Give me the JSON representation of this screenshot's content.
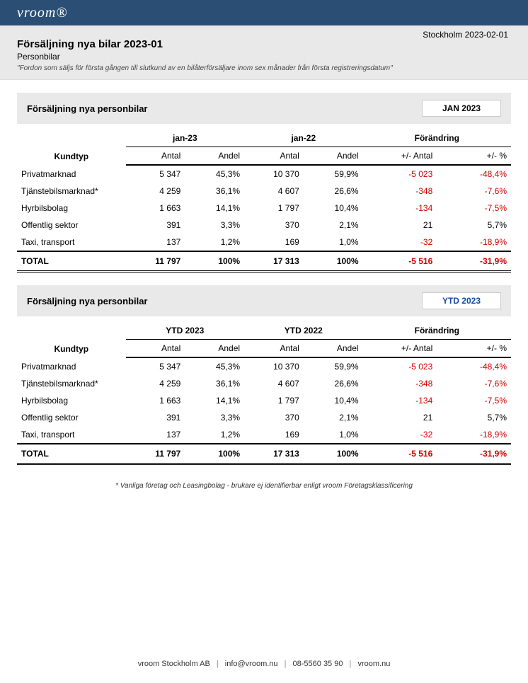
{
  "brand": "vroom®",
  "dateline": "Stockholm 2023-02-01",
  "report_title": "Försäljning nya bilar 2023-01",
  "subtitle": "Personbilar",
  "definition": "\"Fordon som säljs för första gången till slutkund av en bilåterförsäljare inom sex månader från första registreringsdatum\"",
  "colors": {
    "header_bg": "#2b4f74",
    "band_bg": "#e9e9e9",
    "negative": "#d00000",
    "ytd_text": "#1a4a9c"
  },
  "columns": {
    "kundtyp": "Kundtyp",
    "antal": "Antal",
    "andel": "Andel",
    "forandring": "Förändring",
    "plusminus_antal": "+/- Antal",
    "plusminus_pct": "+/- %"
  },
  "sections": [
    {
      "label": "Försäljning nya personbilar",
      "period_badge": "JAN 2023",
      "period_a": "jan-23",
      "period_b": "jan-22",
      "badge_class": "",
      "rows": [
        {
          "label": "Privatmarknad",
          "a_antal": "5 347",
          "a_andel": "45,3%",
          "b_antal": "10 370",
          "b_andel": "59,9%",
          "d_antal": "-5 023",
          "d_pct": "-48,4%",
          "neg": true
        },
        {
          "label": "Tjänstebilsmarknad*",
          "a_antal": "4 259",
          "a_andel": "36,1%",
          "b_antal": "4 607",
          "b_andel": "26,6%",
          "d_antal": "-348",
          "d_pct": "-7,6%",
          "neg": true
        },
        {
          "label": "Hyrbilsbolag",
          "a_antal": "1 663",
          "a_andel": "14,1%",
          "b_antal": "1 797",
          "b_andel": "10,4%",
          "d_antal": "-134",
          "d_pct": "-7,5%",
          "neg": true
        },
        {
          "label": "Offentlig sektor",
          "a_antal": "391",
          "a_andel": "3,3%",
          "b_antal": "370",
          "b_andel": "2,1%",
          "d_antal": "21",
          "d_pct": "5,7%",
          "neg": false
        },
        {
          "label": "Taxi, transport",
          "a_antal": "137",
          "a_andel": "1,2%",
          "b_antal": "169",
          "b_andel": "1,0%",
          "d_antal": "-32",
          "d_pct": "-18,9%",
          "neg": true
        }
      ],
      "total": {
        "label": "TOTAL",
        "a_antal": "11 797",
        "a_andel": "100%",
        "b_antal": "17 313",
        "b_andel": "100%",
        "d_antal": "-5 516",
        "d_pct": "-31,9%",
        "neg": true
      }
    },
    {
      "label": "Försäljning nya personbilar",
      "period_badge": "YTD 2023",
      "period_a": "YTD 2023",
      "period_b": "YTD 2022",
      "badge_class": "ytd",
      "rows": [
        {
          "label": "Privatmarknad",
          "a_antal": "5 347",
          "a_andel": "45,3%",
          "b_antal": "10 370",
          "b_andel": "59,9%",
          "d_antal": "-5 023",
          "d_pct": "-48,4%",
          "neg": true
        },
        {
          "label": "Tjänstebilsmarknad*",
          "a_antal": "4 259",
          "a_andel": "36,1%",
          "b_antal": "4 607",
          "b_andel": "26,6%",
          "d_antal": "-348",
          "d_pct": "-7,6%",
          "neg": true
        },
        {
          "label": "Hyrbilsbolag",
          "a_antal": "1 663",
          "a_andel": "14,1%",
          "b_antal": "1 797",
          "b_andel": "10,4%",
          "d_antal": "-134",
          "d_pct": "-7,5%",
          "neg": true
        },
        {
          "label": "Offentlig sektor",
          "a_antal": "391",
          "a_andel": "3,3%",
          "b_antal": "370",
          "b_andel": "2,1%",
          "d_antal": "21",
          "d_pct": "5,7%",
          "neg": false
        },
        {
          "label": "Taxi, transport",
          "a_antal": "137",
          "a_andel": "1,2%",
          "b_antal": "169",
          "b_andel": "1,0%",
          "d_antal": "-32",
          "d_pct": "-18,9%",
          "neg": true
        }
      ],
      "total": {
        "label": "TOTAL",
        "a_antal": "11 797",
        "a_andel": "100%",
        "b_antal": "17 313",
        "b_andel": "100%",
        "d_antal": "-5 516",
        "d_pct": "-31,9%",
        "neg": true
      }
    }
  ],
  "footnote": "* Vanliga företag och Leasingbolag - brukare ej identifierbar enligt vroom Företagsklassificering",
  "footer": {
    "company": "vroom Stockholm AB",
    "email": "info@vroom.nu",
    "phone": "08-5560 35 90",
    "url": "vroom.nu"
  }
}
